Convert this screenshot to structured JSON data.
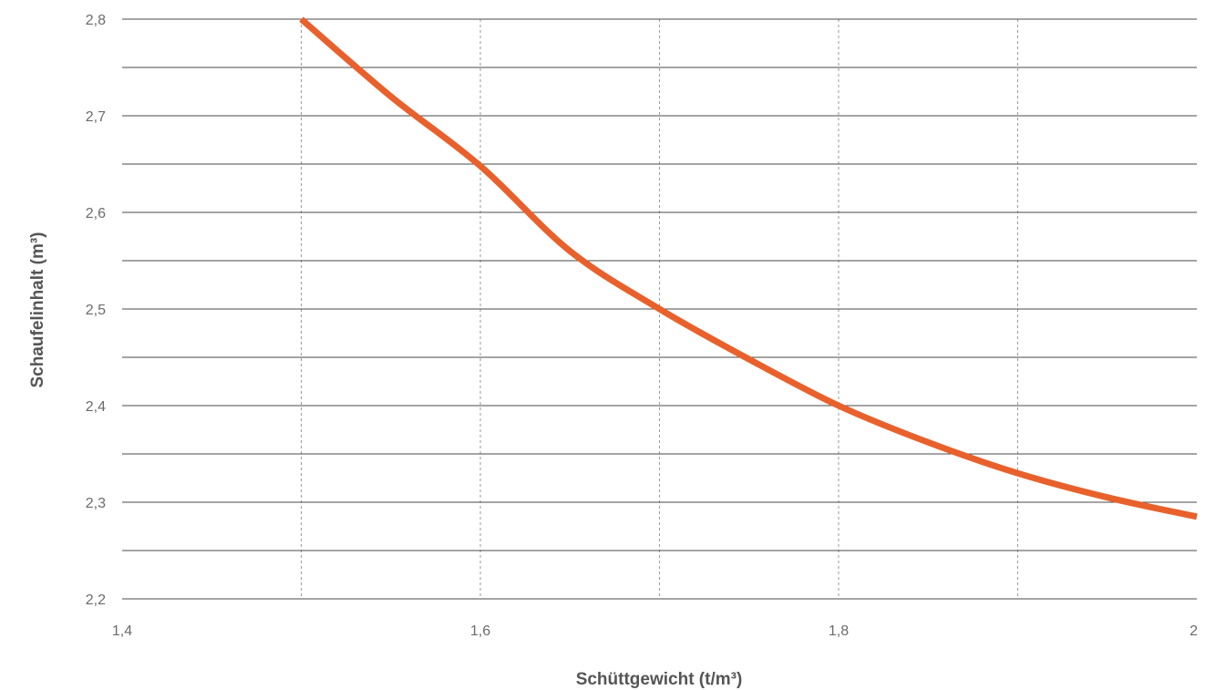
{
  "chart_data": {
    "type": "line",
    "xlabel": "Schüttgewicht (t/m³)",
    "ylabel": "Schaufelinhalt (m³)",
    "xlim": [
      1.4,
      2.0
    ],
    "ylim": [
      2.2,
      2.8
    ],
    "x_ticks": [
      1.4,
      1.6,
      1.8,
      2.0
    ],
    "x_tick_labels": [
      "1,4",
      "1,6",
      "1,8",
      "2"
    ],
    "x_minor_gridlines": [
      1.5,
      1.6,
      1.7,
      1.8,
      1.9
    ],
    "y_ticks": [
      2.2,
      2.3,
      2.4,
      2.5,
      2.6,
      2.7,
      2.8
    ],
    "y_tick_labels": [
      "2,2",
      "2,3",
      "2,4",
      "2,5",
      "2,6",
      "2,7",
      "2,8"
    ],
    "y_minor_gridlines": [
      2.25,
      2.35,
      2.45,
      2.55,
      2.65,
      2.75
    ],
    "grid": true,
    "series": [
      {
        "color": "#e8612c",
        "points": [
          [
            1.5,
            2.8
          ],
          [
            1.55,
            2.72
          ],
          [
            1.6,
            2.648
          ],
          [
            1.65,
            2.56
          ],
          [
            1.7,
            2.5
          ],
          [
            1.75,
            2.448
          ],
          [
            1.8,
            2.4
          ],
          [
            1.85,
            2.362
          ],
          [
            1.9,
            2.33
          ],
          [
            1.95,
            2.305
          ],
          [
            2.0,
            2.285
          ]
        ]
      }
    ]
  }
}
